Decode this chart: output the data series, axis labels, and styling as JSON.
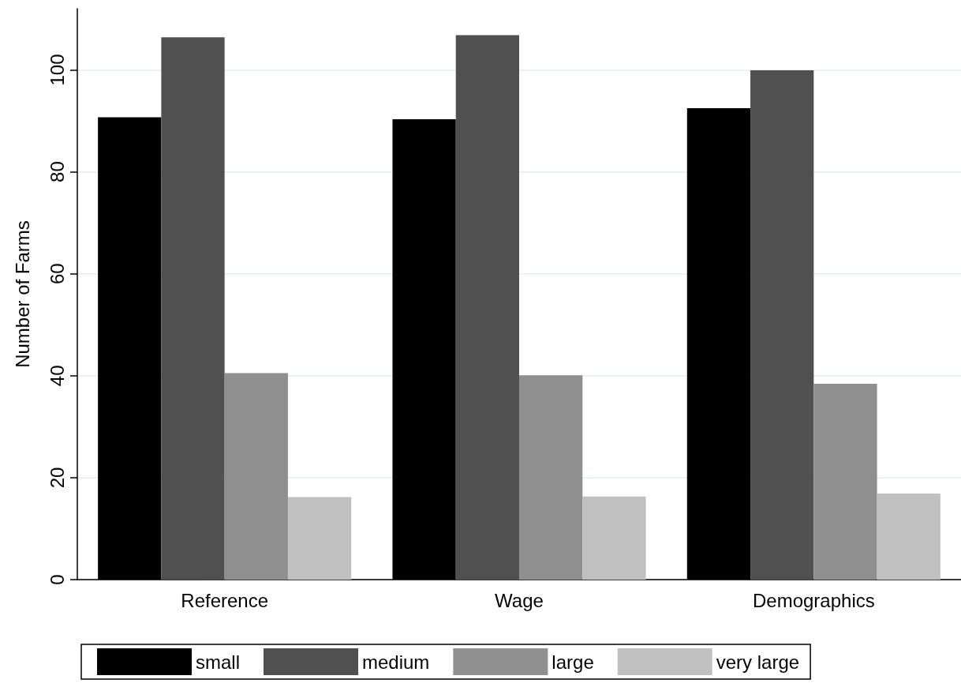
{
  "chart_data": {
    "type": "bar",
    "ylabel": "Number of Farms",
    "categories": [
      "Reference",
      "Wage",
      "Demographics"
    ],
    "series": [
      {
        "name": "small",
        "color": "#000000",
        "values": [
          90.7,
          90.3,
          92.5
        ]
      },
      {
        "name": "medium",
        "color": "#505050",
        "values": [
          106.4,
          106.8,
          99.9
        ]
      },
      {
        "name": "large",
        "color": "#8f8f8f",
        "values": [
          40.5,
          40.1,
          38.4
        ]
      },
      {
        "name": "very large",
        "color": "#c0c0c0",
        "values": [
          16.2,
          16.3,
          16.9
        ]
      }
    ],
    "ylim": [
      0,
      112
    ],
    "yticks": [
      0,
      20,
      40,
      60,
      80,
      100
    ],
    "grid": "y",
    "legend": "bottom"
  }
}
